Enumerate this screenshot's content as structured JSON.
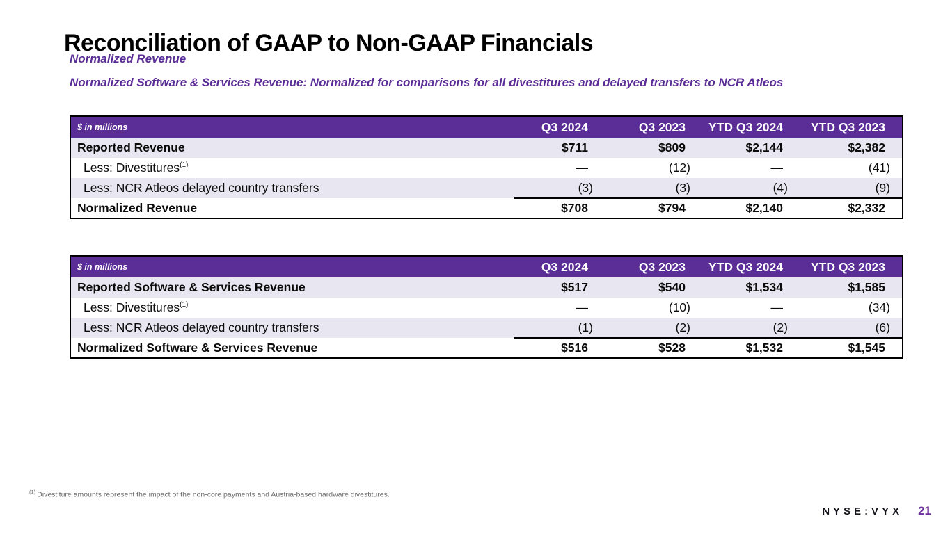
{
  "slide": {
    "title": "Reconciliation of GAAP to Non-GAAP Financials",
    "subtitle1": "Normalized Revenue",
    "subtitle2": "Normalized Software & Services Revenue: Normalized for comparisons for all divestitures and delayed transfers to NCR Atleos"
  },
  "colors": {
    "accent_purple": "#5b2d96",
    "row_lavender": "#e8e6f0",
    "footnote_gray": "#6a6a6a",
    "page_number_purple": "#7030a0"
  },
  "tables": [
    {
      "unit_label": "$ in millions",
      "columns": [
        "Q3 2024",
        "Q3 2023",
        "YTD Q3 2024",
        "YTD Q3 2023"
      ],
      "rows": [
        {
          "label": "Reported Revenue",
          "sup": "",
          "values": [
            "$711",
            "$809",
            "$2,144",
            "$2,382"
          ]
        },
        {
          "label": "Less: Divestitures",
          "sup": "(1)",
          "values": [
            "—",
            "(12)",
            "—",
            "(41)"
          ]
        },
        {
          "label": "Less: NCR Atleos delayed country transfers",
          "sup": "",
          "values": [
            "(3)",
            "(3)",
            "(4)",
            "(9)"
          ]
        },
        {
          "label": "Normalized Revenue",
          "sup": "",
          "values": [
            "$708",
            "$794",
            "$2,140",
            "$2,332"
          ]
        }
      ]
    },
    {
      "unit_label": "$ in millions",
      "columns": [
        "Q3 2024",
        "Q3 2023",
        "YTD Q3 2024",
        "YTD Q3 2023"
      ],
      "rows": [
        {
          "label": "Reported Software & Services Revenue",
          "sup": "",
          "values": [
            "$517",
            "$540",
            "$1,534",
            "$1,585"
          ]
        },
        {
          "label": "Less: Divestitures",
          "sup": "(1)",
          "values": [
            "—",
            "(10)",
            "—",
            "(34)"
          ]
        },
        {
          "label": "Less: NCR Atleos delayed country transfers",
          "sup": "",
          "values": [
            "(1)",
            "(2)",
            "(2)",
            "(6)"
          ]
        },
        {
          "label": "Normalized Software & Services Revenue",
          "sup": "",
          "values": [
            "$516",
            "$528",
            "$1,532",
            "$1,545"
          ]
        }
      ]
    }
  ],
  "footnote": {
    "sup": "(1)",
    "text": "Divestiture amounts represent the impact of the non-core payments and Austria-based hardware divestitures."
  },
  "footer": {
    "ticker": "NYSE:VYX",
    "page_number": "21"
  }
}
